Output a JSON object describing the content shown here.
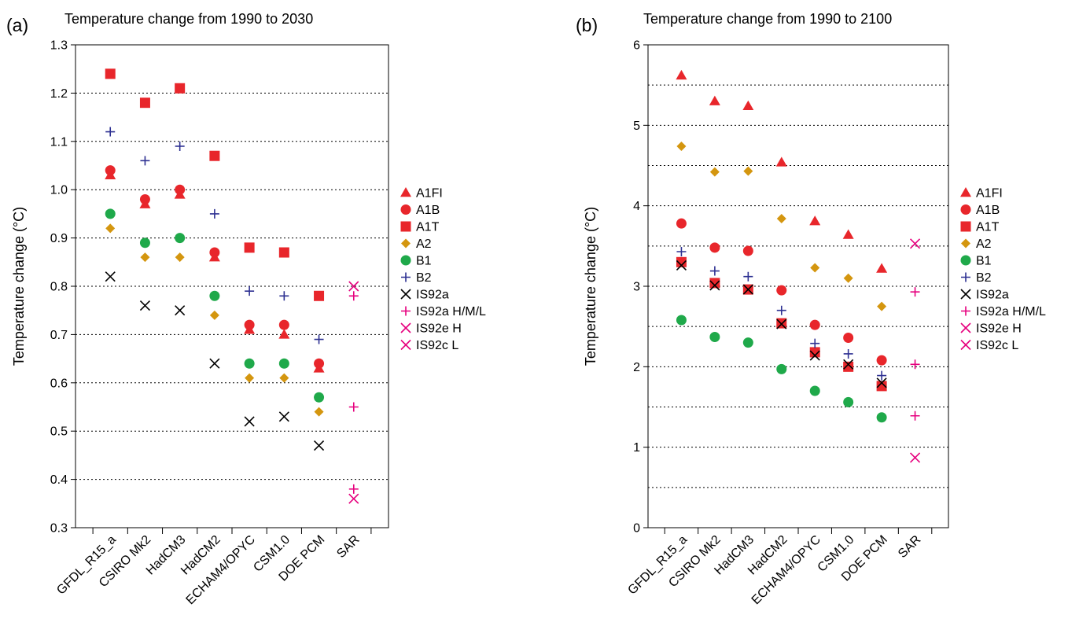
{
  "chart_data": [
    {
      "type": "scatter",
      "panel_label": "(a)",
      "title": "Temperature change from 1990 to 2030",
      "xlabel": "",
      "ylabel": "Temperature change (°C)",
      "ylim": [
        0.3,
        1.3
      ],
      "yticks": [
        "0.3",
        "0.4",
        "0.5",
        "0.6",
        "0.7",
        "0.8",
        "0.9",
        "1.0",
        "1.1",
        "1.2",
        "1.3"
      ],
      "grid": "horizontal dotted",
      "legend_placement": "right",
      "categories": [
        "GFDL_R15_a",
        "CSIRO Mk2",
        "HadCM3",
        "HadCM2",
        "ECHAM4/OPYC",
        "CSM1.0",
        "DOE PCM",
        "SAR"
      ],
      "series": [
        {
          "name": "A1FI",
          "marker": "triangle",
          "color": "#e8262b",
          "values": [
            1.03,
            0.97,
            0.99,
            0.86,
            0.71,
            0.7,
            0.63,
            null
          ]
        },
        {
          "name": "A1B",
          "marker": "circle",
          "color": "#e8262b",
          "values": [
            1.04,
            0.98,
            1.0,
            0.87,
            0.72,
            0.72,
            0.64,
            null
          ]
        },
        {
          "name": "A1T",
          "marker": "square",
          "color": "#e8262b",
          "values": [
            1.24,
            1.18,
            1.21,
            1.07,
            0.88,
            0.87,
            0.78,
            null
          ]
        },
        {
          "name": "A2",
          "marker": "diamond",
          "color": "#d4960f",
          "values": [
            0.92,
            0.86,
            0.86,
            0.74,
            0.61,
            0.61,
            0.54,
            null
          ]
        },
        {
          "name": "B1",
          "marker": "circle",
          "color": "#1fa94a",
          "values": [
            0.95,
            0.89,
            0.9,
            0.78,
            0.64,
            0.64,
            0.57,
            null
          ]
        },
        {
          "name": "B2",
          "marker": "plus",
          "color": "#2e3192",
          "values": [
            1.12,
            1.06,
            1.09,
            0.95,
            0.79,
            0.78,
            0.69,
            null
          ]
        },
        {
          "name": "IS92a",
          "marker": "x",
          "color": "#000000",
          "values": [
            0.82,
            0.76,
            0.75,
            0.64,
            0.52,
            0.53,
            0.47,
            null
          ]
        },
        {
          "name": "IS92a H/M/L",
          "marker": "plus",
          "color": "#e6007e",
          "values": [
            null,
            null,
            null,
            null,
            null,
            null,
            null,
            [
              0.78,
              0.55,
              0.38
            ]
          ]
        },
        {
          "name": "IS92e H",
          "marker": "x",
          "color": "#e6007e",
          "values": [
            null,
            null,
            null,
            null,
            null,
            null,
            null,
            0.8
          ]
        },
        {
          "name": "IS92c L",
          "marker": "x",
          "color": "#e6007e",
          "values": [
            null,
            null,
            null,
            null,
            null,
            null,
            null,
            0.36
          ]
        }
      ]
    },
    {
      "type": "scatter",
      "panel_label": "(b)",
      "title": "Temperature change from 1990 to 2100",
      "xlabel": "",
      "ylabel": "Temperature change (°C)",
      "ylim": [
        0,
        6
      ],
      "yticks": [
        "0",
        "1",
        "2",
        "3",
        "4",
        "5",
        "6"
      ],
      "grid": "horizontal dotted every 0.5",
      "legend_placement": "right",
      "categories": [
        "GFDL_R15_a",
        "CSIRO Mk2",
        "HadCM3",
        "HadCM2",
        "ECHAM4/OPYC",
        "CSM1.0",
        "DOE PCM",
        "SAR"
      ],
      "series": [
        {
          "name": "A1FI",
          "marker": "triangle",
          "color": "#e8262b",
          "values": [
            5.62,
            5.3,
            5.24,
            4.54,
            3.81,
            3.64,
            3.22,
            null
          ]
        },
        {
          "name": "A1B",
          "marker": "circle",
          "color": "#e8262b",
          "values": [
            3.78,
            3.48,
            3.44,
            2.95,
            2.52,
            2.36,
            2.08,
            null
          ]
        },
        {
          "name": "A1T",
          "marker": "square",
          "color": "#e8262b",
          "values": [
            3.3,
            3.04,
            2.96,
            2.54,
            2.18,
            2.0,
            1.76,
            null
          ]
        },
        {
          "name": "A2",
          "marker": "diamond",
          "color": "#d4960f",
          "values": [
            4.74,
            4.42,
            4.43,
            3.84,
            3.23,
            3.1,
            2.75,
            null
          ]
        },
        {
          "name": "B1",
          "marker": "circle",
          "color": "#1fa94a",
          "values": [
            2.58,
            2.37,
            2.3,
            1.97,
            1.7,
            1.56,
            1.37,
            null
          ]
        },
        {
          "name": "B2",
          "marker": "plus",
          "color": "#2e3192",
          "values": [
            3.43,
            3.19,
            3.12,
            2.7,
            2.29,
            2.16,
            1.89,
            null
          ]
        },
        {
          "name": "IS92a",
          "marker": "x",
          "color": "#000000",
          "values": [
            3.26,
            3.01,
            2.96,
            2.53,
            2.14,
            2.03,
            1.8,
            null
          ]
        },
        {
          "name": "IS92a H/M/L",
          "marker": "plus",
          "color": "#e6007e",
          "values": [
            null,
            null,
            null,
            null,
            null,
            null,
            null,
            [
              2.93,
              2.03,
              1.39
            ]
          ]
        },
        {
          "name": "IS92e H",
          "marker": "x",
          "color": "#e6007e",
          "values": [
            null,
            null,
            null,
            null,
            null,
            null,
            null,
            3.53
          ]
        },
        {
          "name": "IS92c L",
          "marker": "x",
          "color": "#e6007e",
          "values": [
            null,
            null,
            null,
            null,
            null,
            null,
            null,
            0.87
          ]
        }
      ]
    }
  ]
}
